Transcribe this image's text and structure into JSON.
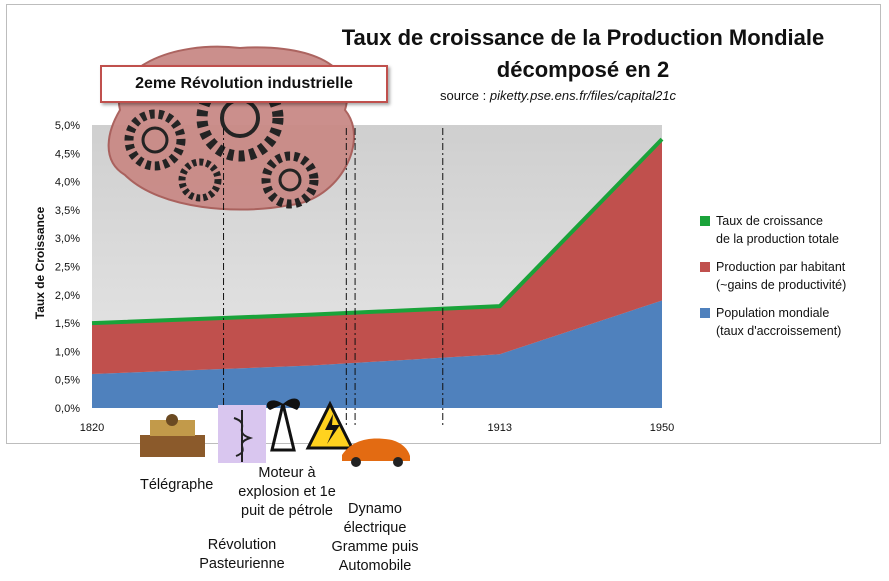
{
  "chart_data": {
    "type": "area",
    "title_line1": "Taux de croissance de la Production Mondiale",
    "title_line2": "décomposé en 2",
    "source_prefix": "source : ",
    "source_url": "piketty.pse.ens.fr/files/capital21c",
    "ylabel": "Taux de Croissance",
    "ylim": [
      0,
      5.0
    ],
    "yticks": [
      "0,0%",
      "0,5%",
      "1,0%",
      "1,5%",
      "2,0%",
      "2,5%",
      "3,0%",
      "3,5%",
      "4,0%",
      "4,5%",
      "5,0%"
    ],
    "x": [
      1820,
      1870,
      1913,
      1950
    ],
    "xtick_labels": [
      "1820",
      "1913",
      "1950"
    ],
    "series": [
      {
        "name": "Taux de croissance de la production totale",
        "values": [
          1.5,
          1.65,
          1.8,
          4.75
        ],
        "color": "#1aa33a"
      },
      {
        "name": "Production par habitant (~gains de productivité)",
        "values": [
          0.9,
          0.9,
          0.85,
          2.85
        ],
        "color": "#c0504d"
      },
      {
        "name": "Population mondiale (taux d'accroissement)",
        "values": [
          0.6,
          0.75,
          0.95,
          1.9
        ],
        "color": "#4f81bd"
      }
    ],
    "legend": [
      {
        "line1": "Taux de croissance",
        "line2": "de la production totale",
        "color": "#1aa33a"
      },
      {
        "line1": "Production par habitant",
        "line2": "(~gains de productivité)",
        "color": "#c0504d"
      },
      {
        "line1": "Population mondiale",
        "line2": "(taux d'accroissement)",
        "color": "#4f81bd"
      }
    ],
    "legend_position": "right",
    "grid": false,
    "annotations": {
      "box_label": "2eme Révolution industrielle",
      "telegraphe": "Télégraphe",
      "moteur_line1": "Moteur à",
      "moteur_line2": "explosion et 1e",
      "moteur_line3": "puit de pétrole",
      "pasteur_line1": "Révolution",
      "pasteur_line2": "Pasteurienne",
      "dynamo_line1": "Dynamo",
      "dynamo_line2": "électrique",
      "dynamo_line3": "Gramme puis",
      "dynamo_line4": "Automobile"
    },
    "event_years": [
      1850,
      1878,
      1880,
      1900
    ]
  }
}
